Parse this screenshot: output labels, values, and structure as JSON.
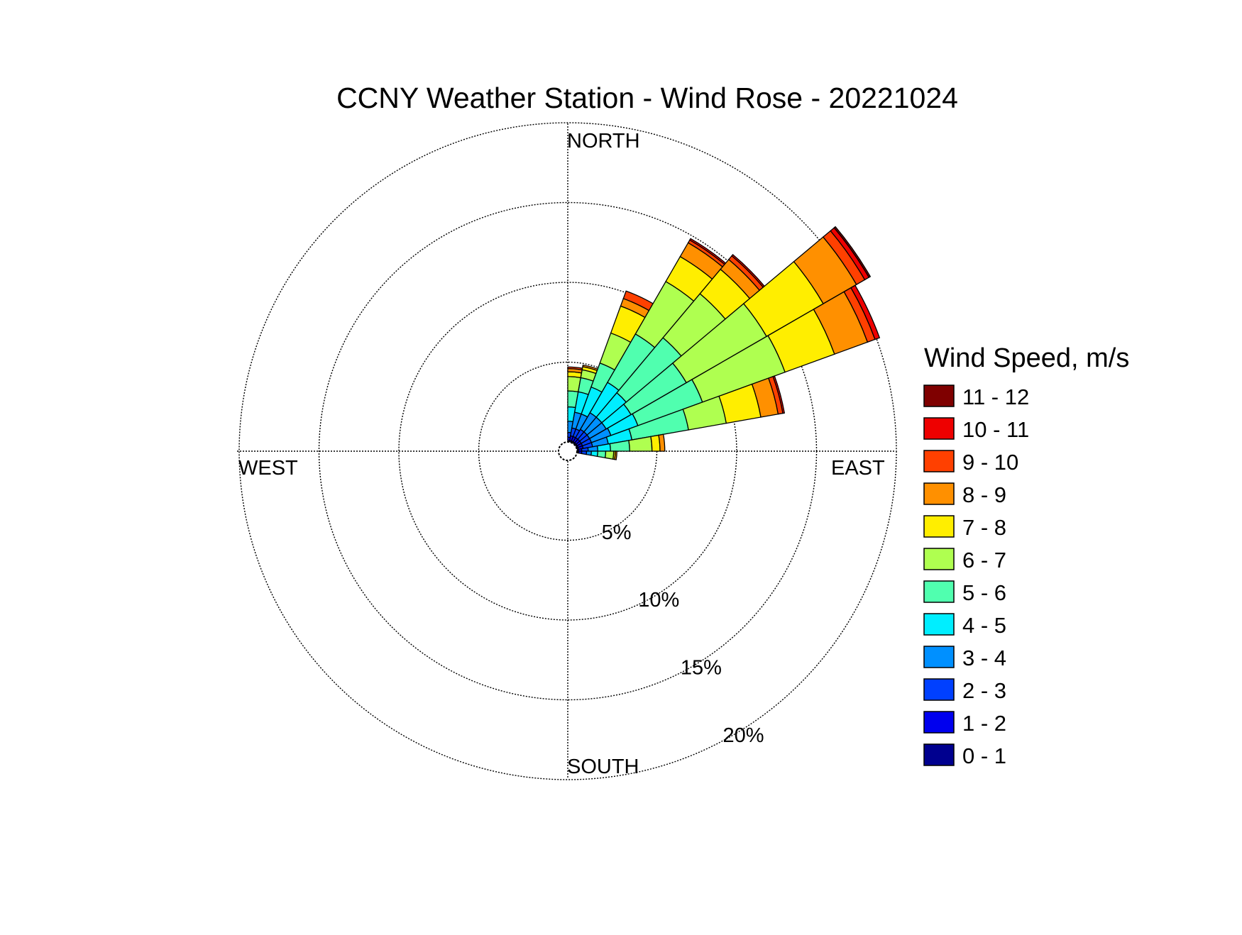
{
  "chart_data": {
    "type": "windrose",
    "title": "CCNY Weather Station - Wind Rose - 20221024",
    "direction_labels": {
      "north": "NORTH",
      "east": "EAST",
      "south": "SOUTH",
      "west": "WEST"
    },
    "radial_ticks": [
      5,
      10,
      15,
      20
    ],
    "radial_tick_labels": [
      "5%",
      "10%",
      "15%",
      "20%"
    ],
    "rmax_percent": 20,
    "grid": true,
    "legend": {
      "title": "Wind Speed, m/s",
      "placement": "right",
      "bins": [
        "0 - 1",
        "1 - 2",
        "2 - 3",
        "3 - 4",
        "4 - 5",
        "5 - 6",
        "6 - 7",
        "7 - 8",
        "8 - 9",
        "9 - 10",
        "10 - 11",
        "11 - 12"
      ],
      "colors": [
        "#00008F",
        "#0000EE",
        "#0040FF",
        "#0090FF",
        "#00EEFF",
        "#50FFAF",
        "#AFFF50",
        "#FFEE00",
        "#FF9000",
        "#FF4000",
        "#EE0000",
        "#7F0000"
      ]
    },
    "sector_width_deg": 10,
    "sectors": [
      {
        "direction_deg": 5,
        "values": [
          0.1,
          0.2,
          0.3,
          0.7,
          0.9,
          1.0,
          0.9,
          0.3,
          0.2,
          0.1,
          0,
          0
        ]
      },
      {
        "direction_deg": 15,
        "values": [
          0.1,
          0.3,
          0.5,
          1.0,
          1.3,
          0.9,
          0.5,
          0.2,
          0.1,
          0,
          0,
          0
        ]
      },
      {
        "direction_deg": 25,
        "values": [
          0.1,
          0.3,
          0.5,
          1.0,
          1.8,
          1.6,
          2.0,
          1.8,
          0.5,
          0.5,
          0,
          0
        ]
      },
      {
        "direction_deg": 35,
        "values": [
          0.1,
          0.3,
          0.6,
          1.2,
          2.2,
          3.5,
          3.8,
          1.8,
          1.0,
          0.2,
          0.1,
          0
        ]
      },
      {
        "direction_deg": 45,
        "values": [
          0.1,
          0.3,
          0.6,
          1.2,
          2.0,
          4.5,
          3.6,
          2.0,
          0.8,
          0.3,
          0.1,
          0
        ]
      },
      {
        "direction_deg": 55,
        "values": [
          0.1,
          0.3,
          0.6,
          1.2,
          1.8,
          4.0,
          5.8,
          4.1,
          2.4,
          0.6,
          0.3,
          0.1
        ]
      },
      {
        "direction_deg": 65,
        "values": [
          0.1,
          0.3,
          0.6,
          1.3,
          1.8,
          4.3,
          5.5,
          3.3,
          2.2,
          0.5,
          0.3,
          0
        ]
      },
      {
        "direction_deg": 75,
        "values": [
          0.1,
          0.3,
          0.6,
          1.0,
          1.5,
          3.6,
          2.4,
          2.2,
          1.1,
          0.3,
          0.1,
          0
        ]
      },
      {
        "direction_deg": 85,
        "values": [
          0.1,
          0.2,
          0.4,
          0.6,
          0.8,
          1.2,
          1.4,
          0.5,
          0.3,
          0,
          0,
          0
        ]
      },
      {
        "direction_deg": 95,
        "values": [
          0.1,
          0.2,
          0.3,
          0.3,
          0.4,
          0.5,
          0.5,
          0.1,
          0.1,
          0,
          0,
          0
        ]
      }
    ]
  }
}
